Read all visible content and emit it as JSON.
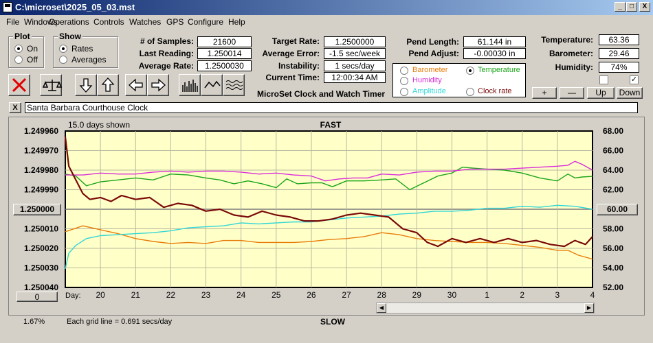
{
  "window": {
    "title": "C:\\microset\\2025_05_03.mst",
    "min": "_",
    "max": "□",
    "close": "X"
  },
  "menu": [
    "File",
    "Windows",
    "Operations",
    "Controls",
    "Watches",
    "GPS",
    "Configure",
    "Help"
  ],
  "plot": {
    "title": "Plot",
    "options": [
      "On",
      "Off"
    ],
    "selected": "On"
  },
  "show": {
    "title": "Show",
    "options": [
      "Rates",
      "Averages"
    ],
    "selected": "Rates"
  },
  "stats_left": {
    "samples_label": "# of Samples:",
    "samples": "21600",
    "last_label": "Last Reading:",
    "last": "1.250014",
    "avg_label": "Average Rate:",
    "avg": "1.2500030"
  },
  "stats_mid": {
    "target_label": "Target Rate:",
    "target": "1.2500000",
    "err_label": "Average Error:",
    "err": "-1.5 sec/week",
    "inst_label": "Instability:",
    "inst": "1 secs/day",
    "time_label": "Current Time:",
    "time": "12:00:34 AM"
  },
  "app_name": "MicroSet Clock and Watch Timer",
  "pend": {
    "length_label": "Pend Length:",
    "length": "61.144 in",
    "adjust_label": "Pend Adjust:",
    "adjust": "-0.00030 in"
  },
  "params": {
    "barometer": "Barometer",
    "temperature": "Temperature",
    "humidity": "Humidity",
    "amplitude": "Amplitude",
    "clock_rate": "Clock rate",
    "selected": "Temperature",
    "colors": {
      "barometer": "#e87c0a",
      "temperature": "#1aa51a",
      "humidity": "#d92bd9",
      "amplitude": "#2fd6d6",
      "clock_rate": "#7a0a0a"
    }
  },
  "env": {
    "temp_label": "Temperature:",
    "temp": "63.36",
    "baro_label": "Barometer:",
    "baro": "29.46",
    "hum_label": "Humidity:",
    "hum": "74%",
    "check1": "",
    "check2": "✓"
  },
  "scale_buttons": {
    "plus": "+",
    "minus": "—",
    "up": "Up",
    "down": "Down"
  },
  "clock_name": "Santa Barbara Courthouse Clock",
  "clock_close": "X",
  "chart_data": {
    "type": "line",
    "top_label": "FAST",
    "bottom_label": "SLOW",
    "days_shown": "15.0 days shown",
    "grid_note": "Each grid line = 0.691 secs/day",
    "left_center_button": "1.250000",
    "right_center_button": "60.00",
    "left_bottom_button": "0",
    "bottom_left_text": "1.67%",
    "day_label": "Day:",
    "days": [
      "20",
      "21",
      "22",
      "23",
      "24",
      "25",
      "26",
      "27",
      "28",
      "29",
      "30",
      "1",
      "2",
      "3",
      "4"
    ],
    "y_left": [
      "1.249960",
      "1.249970",
      "1.249980",
      "1.249990",
      "1.250000",
      "1.250010",
      "1.250020",
      "1.250030",
      "1.250040"
    ],
    "y_right": [
      "68.00",
      "66.00",
      "64.00",
      "62.00",
      "60.00",
      "58.00",
      "56.00",
      "54.00",
      "52.00"
    ],
    "ylim_left": [
      1.24996,
      1.25004
    ],
    "ylim_right": [
      68,
      52
    ],
    "xlim": [
      19.0,
      34.0
    ],
    "series": [
      {
        "key": "clock_rate",
        "color": "#7a0a0a",
        "axis": "left",
        "x": [
          19.0,
          19.1,
          19.3,
          19.5,
          19.7,
          20.0,
          20.3,
          20.6,
          21.0,
          21.4,
          21.8,
          22.2,
          22.6,
          23.0,
          23.4,
          23.8,
          24.2,
          24.6,
          25.0,
          25.4,
          25.8,
          26.2,
          26.6,
          27.0,
          27.4,
          27.8,
          28.2,
          28.6,
          29.0,
          29.3,
          29.6,
          30.0,
          30.4,
          30.8,
          31.2,
          31.6,
          32.0,
          32.4,
          32.8,
          33.2,
          33.5,
          33.8,
          34.0
        ],
        "y": [
          1.249963,
          1.249978,
          1.249985,
          1.249992,
          1.249995,
          1.249994,
          1.249996,
          1.249993,
          1.249995,
          1.249994,
          1.249999,
          1.249997,
          1.249998,
          1.250001,
          1.25,
          1.250003,
          1.250004,
          1.250001,
          1.250003,
          1.250004,
          1.250006,
          1.250006,
          1.250005,
          1.250003,
          1.250002,
          1.250003,
          1.250004,
          1.25001,
          1.250012,
          1.250017,
          1.250019,
          1.250015,
          1.250017,
          1.250015,
          1.250017,
          1.250015,
          1.250017,
          1.250016,
          1.250018,
          1.250019,
          1.250016,
          1.250018,
          1.250014
        ]
      },
      {
        "key": "temperature",
        "color": "#1aa51a",
        "axis": "right",
        "x": [
          19.0,
          19.3,
          19.6,
          20.0,
          20.5,
          21.0,
          21.5,
          22.0,
          22.5,
          23.0,
          23.4,
          23.8,
          24.2,
          24.6,
          25.0,
          25.3,
          25.6,
          26.0,
          26.3,
          26.6,
          27.0,
          27.5,
          28.0,
          28.4,
          28.8,
          29.2,
          29.6,
          30.0,
          30.3,
          30.6,
          31.0,
          31.5,
          32.0,
          32.5,
          33.0,
          33.3,
          33.5,
          33.7,
          34.0
        ],
        "y": [
          63.6,
          63.4,
          62.4,
          62.8,
          63.0,
          63.2,
          63.0,
          63.6,
          63.5,
          63.2,
          63.0,
          62.6,
          62.9,
          62.6,
          62.2,
          63.1,
          62.6,
          62.7,
          62.7,
          62.3,
          62.9,
          62.9,
          63.0,
          63.1,
          62.0,
          62.7,
          63.4,
          63.7,
          64.3,
          64.2,
          64.1,
          64.0,
          63.7,
          63.2,
          62.9,
          63.6,
          63.2,
          63.3,
          63.36
        ]
      },
      {
        "key": "humidity",
        "color": "#d92bd9",
        "axis": "right",
        "x": [
          19.0,
          19.5,
          20.0,
          20.5,
          21.0,
          21.5,
          22.0,
          22.5,
          23.0,
          23.5,
          24.0,
          24.5,
          25.0,
          25.5,
          26.0,
          26.4,
          26.8,
          27.2,
          27.6,
          28.0,
          28.5,
          29.0,
          29.5,
          30.0,
          30.5,
          31.0,
          31.5,
          32.0,
          32.5,
          33.0,
          33.3,
          33.5,
          33.7,
          34.0
        ],
        "y": [
          63.5,
          63.5,
          63.7,
          63.6,
          63.6,
          63.8,
          63.9,
          63.8,
          63.9,
          63.9,
          63.8,
          63.6,
          63.7,
          63.5,
          63.4,
          62.9,
          63.1,
          63.2,
          63.2,
          63.6,
          63.5,
          63.8,
          63.9,
          63.9,
          64.1,
          64.1,
          64.1,
          64.2,
          64.3,
          64.4,
          64.5,
          64.9,
          64.6,
          64.0
        ]
      },
      {
        "key": "amplitude",
        "color": "#2fd6d6",
        "axis": "right",
        "x": [
          19.0,
          19.1,
          19.3,
          19.6,
          20.0,
          20.5,
          21.0,
          21.5,
          22.0,
          22.5,
          23.0,
          23.5,
          24.0,
          24.5,
          25.0,
          25.5,
          26.0,
          26.5,
          27.0,
          27.5,
          28.0,
          28.5,
          29.0,
          29.5,
          30.0,
          30.5,
          31.0,
          31.5,
          32.0,
          32.5,
          33.0,
          33.5,
          34.0
        ],
        "y": [
          53.9,
          55.5,
          56.3,
          57.0,
          57.3,
          57.4,
          57.5,
          57.6,
          57.8,
          58.1,
          58.2,
          58.3,
          58.6,
          58.5,
          58.6,
          58.7,
          58.7,
          58.9,
          59.1,
          59.2,
          59.3,
          59.5,
          59.6,
          59.8,
          59.8,
          59.9,
          60.1,
          60.1,
          60.3,
          60.2,
          60.4,
          60.3,
          60.0
        ]
      },
      {
        "key": "barometer",
        "color": "#e87c0a",
        "axis": "right",
        "x": [
          19.0,
          19.5,
          20.0,
          20.5,
          21.0,
          21.5,
          22.0,
          22.5,
          23.0,
          23.5,
          24.0,
          24.5,
          25.0,
          25.5,
          26.0,
          26.5,
          27.0,
          27.5,
          28.0,
          28.5,
          29.0,
          29.5,
          30.0,
          30.5,
          31.0,
          31.5,
          32.0,
          32.5,
          33.0,
          33.3,
          33.6,
          34.0
        ],
        "y": [
          57.7,
          58.3,
          57.9,
          57.5,
          57.0,
          56.7,
          56.5,
          56.6,
          56.5,
          56.8,
          56.8,
          56.6,
          56.6,
          56.6,
          56.7,
          56.9,
          57.0,
          57.2,
          57.6,
          57.4,
          57.0,
          56.8,
          56.7,
          56.6,
          56.6,
          56.5,
          56.3,
          56.1,
          55.8,
          55.8,
          55.3,
          54.9
        ]
      }
    ]
  }
}
